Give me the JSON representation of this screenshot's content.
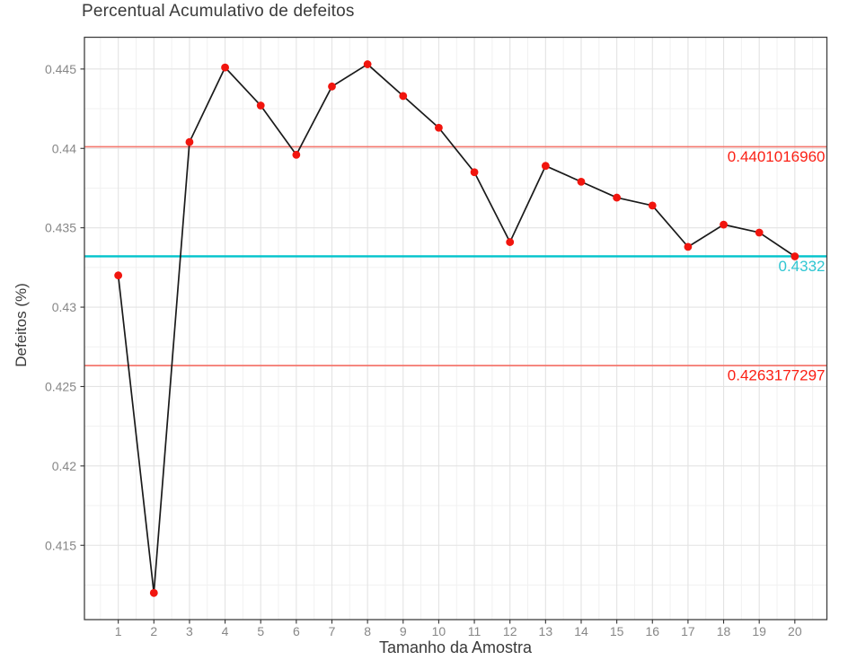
{
  "chart_data": {
    "type": "line",
    "title": "Percentual Acumulativo de defeitos",
    "xlabel": "Tamanho da Amostra",
    "ylabel": "Defeitos (%)",
    "x": [
      1,
      2,
      3,
      4,
      5,
      6,
      7,
      8,
      9,
      10,
      11,
      12,
      13,
      14,
      15,
      16,
      17,
      18,
      19,
      20
    ],
    "y": [
      0.432,
      0.412,
      0.4404,
      0.4451,
      0.4427,
      0.4396,
      0.4439,
      0.4453,
      0.4433,
      0.4413,
      0.4385,
      0.4341,
      0.4389,
      0.4379,
      0.4369,
      0.4364,
      0.4338,
      0.4352,
      0.4347,
      0.4332
    ],
    "xlim": [
      0.05,
      20.9
    ],
    "ylim": [
      0.41032,
      0.447
    ],
    "x_ticks": [
      1,
      2,
      3,
      4,
      5,
      6,
      7,
      8,
      9,
      10,
      11,
      12,
      13,
      14,
      15,
      16,
      17,
      18,
      19,
      20
    ],
    "x_tick_labels": [
      "1",
      "2",
      "3",
      "4",
      "5",
      "6",
      "7",
      "8",
      "9",
      "10",
      "11",
      "12",
      "13",
      "14",
      "15",
      "16",
      "17",
      "18",
      "19",
      "20"
    ],
    "y_ticks": [
      0.415,
      0.42,
      0.425,
      0.43,
      0.435,
      0.44,
      0.445
    ],
    "y_tick_labels": [
      "0.415",
      "0.42",
      "0.425",
      "0.43",
      "0.435",
      "0.44",
      "0.445"
    ],
    "grid": true,
    "legend": "none",
    "reference_lines": [
      {
        "name": "upper-reference-line",
        "value": 0.440101696,
        "label": "0.4401016960",
        "line_color": "#f4776e",
        "label_color": "#fb2015",
        "width": 1.7
      },
      {
        "name": "center-reference-line",
        "value": 0.4332,
        "label": "0.4332",
        "line_color": "#00c3cc",
        "label_color": "#2fc6d2",
        "width": 2.4
      },
      {
        "name": "lower-reference-line",
        "value": 0.4263177297,
        "label": "0.4263177297",
        "line_color": "#f4776e",
        "label_color": "#fb2015",
        "width": 1.7
      }
    ],
    "colors": {
      "series_line": "#1a1a1a",
      "point_fill": "#f1150e",
      "grid_major": "#e3e3e3",
      "grid_minor": "#f1f1f1",
      "panel_border": "#3f3f3f",
      "tick_mark": "#333333",
      "tick_label": "#878787",
      "title_text": "#3a3a3a"
    }
  }
}
